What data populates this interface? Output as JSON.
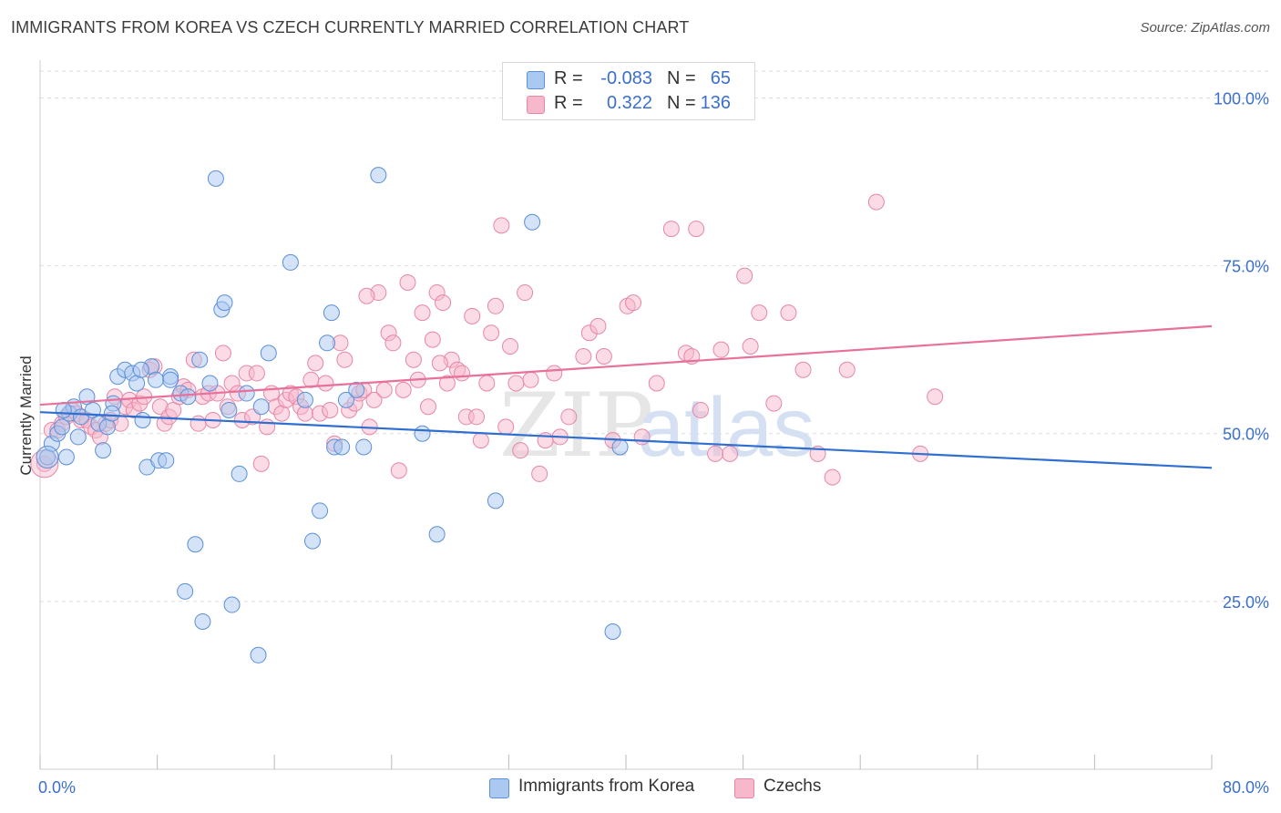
{
  "title": "IMMIGRANTS FROM KOREA VS CZECH CURRENTLY MARRIED CORRELATION CHART",
  "source": "Source: ZipAtlas.com",
  "watermark": {
    "zip": "ZIP",
    "atlas": "atlas"
  },
  "legend": {
    "series1": {
      "r_label": "R =",
      "r_value": "-0.083",
      "n_label": "N =",
      "n_value": "65"
    },
    "series2": {
      "r_label": "R =",
      "r_value": "0.322",
      "n_label": "N =",
      "n_value": "136"
    }
  },
  "bottom_legend": {
    "series1": "Immigrants from Korea",
    "series2": "Czechs"
  },
  "colors": {
    "korea_fill": "#aac8f0",
    "korea_stroke": "#5b8fd8",
    "korea_line": "#2f6fd0",
    "czech_fill": "#f7b8cc",
    "czech_stroke": "#e687a7",
    "czech_line": "#e8709a",
    "axis_label": "#3a6fd0",
    "grid": "#dddddd"
  },
  "chart_data": {
    "type": "scatter",
    "title": "IMMIGRANTS FROM KOREA VS CZECH CURRENTLY MARRIED CORRELATION CHART",
    "xlabel": "",
    "ylabel": "Currently Married",
    "xlim": [
      0,
      80
    ],
    "ylim": [
      0,
      104
    ],
    "x_tick_labels": [
      "0.0%",
      "80.0%"
    ],
    "y_ticks": [
      25,
      50,
      75,
      100
    ],
    "y_tick_labels": [
      "25.0%",
      "50.0%",
      "75.0%",
      "100.0%"
    ],
    "grid": "horizontal dashed",
    "legend_position": "top-center",
    "series": [
      {
        "name": "Immigrants from Korea",
        "r": -0.083,
        "n": 65,
        "trend": {
          "x": [
            0,
            80
          ],
          "y": [
            53.2,
            44.9
          ]
        },
        "points": [
          [
            0.5,
            46.5
          ],
          [
            0.8,
            48.5
          ],
          [
            1.2,
            50
          ],
          [
            1.5,
            51
          ],
          [
            1.8,
            46.5
          ],
          [
            2,
            53
          ],
          [
            2.3,
            54
          ],
          [
            2.6,
            49.5
          ],
          [
            2.8,
            52.5
          ],
          [
            3.2,
            55.5
          ],
          [
            3.6,
            53.5
          ],
          [
            4,
            51.5
          ],
          [
            4.3,
            47.5
          ],
          [
            4.6,
            51
          ],
          [
            5,
            54.5
          ],
          [
            5.3,
            58.5
          ],
          [
            5.8,
            59.5
          ],
          [
            6.3,
            59
          ],
          [
            6.6,
            57.5
          ],
          [
            7,
            52
          ],
          [
            7.3,
            45
          ],
          [
            7.6,
            60
          ],
          [
            8.1,
            46
          ],
          [
            8.6,
            46
          ],
          [
            8.9,
            58.5
          ],
          [
            8.9,
            58
          ],
          [
            9.6,
            56
          ],
          [
            10.1,
            55.5
          ],
          [
            10.6,
            33.5
          ],
          [
            10.9,
            61
          ],
          [
            11.6,
            57.5
          ],
          [
            12,
            88
          ],
          [
            12.4,
            68.5
          ],
          [
            12.6,
            69.5
          ],
          [
            12.9,
            53.5
          ],
          [
            13.6,
            44
          ],
          [
            14.1,
            56
          ],
          [
            15.1,
            54
          ],
          [
            15.6,
            62
          ],
          [
            17.1,
            75.5
          ],
          [
            18.1,
            55
          ],
          [
            18.6,
            34
          ],
          [
            19.1,
            38.5
          ],
          [
            19.6,
            63.5
          ],
          [
            19.9,
            68
          ],
          [
            20.1,
            48
          ],
          [
            20.6,
            48
          ],
          [
            20.9,
            55
          ],
          [
            21.6,
            56.5
          ],
          [
            22.1,
            48
          ],
          [
            23.1,
            88.5
          ],
          [
            26.1,
            50
          ],
          [
            27.1,
            35
          ],
          [
            31.1,
            40
          ],
          [
            33.6,
            81.5
          ],
          [
            39.1,
            20.5
          ],
          [
            39.6,
            48
          ],
          [
            11.1,
            22
          ],
          [
            9.9,
            26.5
          ],
          [
            13.1,
            24.5
          ],
          [
            14.9,
            17
          ],
          [
            7.9,
            58
          ],
          [
            6.9,
            59.5
          ],
          [
            4.9,
            53
          ],
          [
            1.6,
            53.5
          ]
        ]
      },
      {
        "name": "Czechs",
        "r": 0.322,
        "n": 136,
        "trend": {
          "x": [
            0,
            80
          ],
          "y": [
            54.3,
            66
          ]
        },
        "points": [
          [
            0.3,
            45.5
          ],
          [
            0.8,
            50.5
          ],
          [
            1.2,
            50.5
          ],
          [
            1.5,
            51.5
          ],
          [
            1.8,
            52.5
          ],
          [
            2.2,
            53.5
          ],
          [
            2.5,
            53
          ],
          [
            2.8,
            52
          ],
          [
            3.2,
            52
          ],
          [
            3.5,
            51
          ],
          [
            3.8,
            50.5
          ],
          [
            4.1,
            49.5
          ],
          [
            4.5,
            51.5
          ],
          [
            4.8,
            52
          ],
          [
            5.1,
            55.5
          ],
          [
            5.5,
            51.5
          ],
          [
            5.8,
            54
          ],
          [
            6.1,
            55
          ],
          [
            6.4,
            53.5
          ],
          [
            6.8,
            54.5
          ],
          [
            7.1,
            55.5
          ],
          [
            7.5,
            59.5
          ],
          [
            7.8,
            60
          ],
          [
            8.2,
            54
          ],
          [
            8.5,
            51.5
          ],
          [
            8.8,
            52.5
          ],
          [
            9.1,
            53.5
          ],
          [
            9.5,
            55.5
          ],
          [
            9.8,
            57
          ],
          [
            10.1,
            56.5
          ],
          [
            10.5,
            61
          ],
          [
            10.8,
            51.5
          ],
          [
            11.1,
            55.5
          ],
          [
            11.5,
            56
          ],
          [
            11.8,
            52
          ],
          [
            12.1,
            56
          ],
          [
            12.5,
            62
          ],
          [
            12.8,
            54
          ],
          [
            13.1,
            57.5
          ],
          [
            13.5,
            56
          ],
          [
            13.8,
            52
          ],
          [
            14.1,
            59
          ],
          [
            14.5,
            52.5
          ],
          [
            14.8,
            59
          ],
          [
            15.1,
            45.5
          ],
          [
            15.5,
            51
          ],
          [
            15.8,
            56
          ],
          [
            16.1,
            54
          ],
          [
            16.5,
            53
          ],
          [
            16.8,
            55
          ],
          [
            17.1,
            56
          ],
          [
            17.5,
            55.5
          ],
          [
            17.8,
            54
          ],
          [
            18.1,
            53
          ],
          [
            18.5,
            58
          ],
          [
            18.8,
            60.5
          ],
          [
            19.1,
            53
          ],
          [
            19.5,
            57.5
          ],
          [
            19.8,
            53.5
          ],
          [
            20.1,
            48.5
          ],
          [
            20.5,
            63.5
          ],
          [
            20.8,
            61
          ],
          [
            21.1,
            53.5
          ],
          [
            21.5,
            54.5
          ],
          [
            21.8,
            56
          ],
          [
            22.1,
            56.5
          ],
          [
            22.5,
            51
          ],
          [
            22.8,
            55
          ],
          [
            23.1,
            71
          ],
          [
            23.5,
            56.5
          ],
          [
            23.8,
            65
          ],
          [
            24.1,
            63.5
          ],
          [
            24.5,
            44.5
          ],
          [
            24.8,
            56.5
          ],
          [
            25.1,
            72.5
          ],
          [
            25.5,
            61
          ],
          [
            25.8,
            58
          ],
          [
            26.1,
            68
          ],
          [
            26.5,
            54
          ],
          [
            26.8,
            64
          ],
          [
            27.1,
            71
          ],
          [
            27.5,
            69.5
          ],
          [
            27.8,
            57.5
          ],
          [
            28.1,
            61
          ],
          [
            28.5,
            59.5
          ],
          [
            28.8,
            59
          ],
          [
            29.1,
            52.5
          ],
          [
            29.5,
            67.5
          ],
          [
            29.8,
            52.5
          ],
          [
            30.1,
            49
          ],
          [
            30.5,
            57.5
          ],
          [
            30.8,
            65
          ],
          [
            31.1,
            69
          ],
          [
            31.5,
            81
          ],
          [
            31.8,
            51
          ],
          [
            32.1,
            63
          ],
          [
            32.5,
            57.5
          ],
          [
            32.8,
            47.5
          ],
          [
            33.1,
            71
          ],
          [
            33.5,
            58
          ],
          [
            34.1,
            44
          ],
          [
            34.5,
            49
          ],
          [
            35.1,
            59
          ],
          [
            35.5,
            49.5
          ],
          [
            36.1,
            52.5
          ],
          [
            37.1,
            61.5
          ],
          [
            37.5,
            65
          ],
          [
            38.1,
            66
          ],
          [
            38.5,
            61.5
          ],
          [
            39.1,
            49
          ],
          [
            40.1,
            69
          ],
          [
            40.5,
            69.5
          ],
          [
            41.1,
            49.5
          ],
          [
            42.1,
            57.5
          ],
          [
            43.1,
            80.5
          ],
          [
            44.1,
            62
          ],
          [
            44.5,
            61.5
          ],
          [
            45.1,
            53.5
          ],
          [
            46.1,
            47
          ],
          [
            46.5,
            62.5
          ],
          [
            47.1,
            47
          ],
          [
            48.1,
            73.5
          ],
          [
            48.5,
            63
          ],
          [
            49.1,
            68
          ],
          [
            50.1,
            54.5
          ],
          [
            52.1,
            59.5
          ],
          [
            53.1,
            47
          ],
          [
            54.1,
            43.5
          ],
          [
            55.1,
            59.5
          ],
          [
            57.1,
            84.5
          ],
          [
            60.1,
            47
          ],
          [
            61.1,
            55.5
          ],
          [
            44.8,
            80.5
          ],
          [
            51.1,
            68
          ],
          [
            22.3,
            70.5
          ],
          [
            27.3,
            60.5
          ]
        ]
      }
    ]
  }
}
